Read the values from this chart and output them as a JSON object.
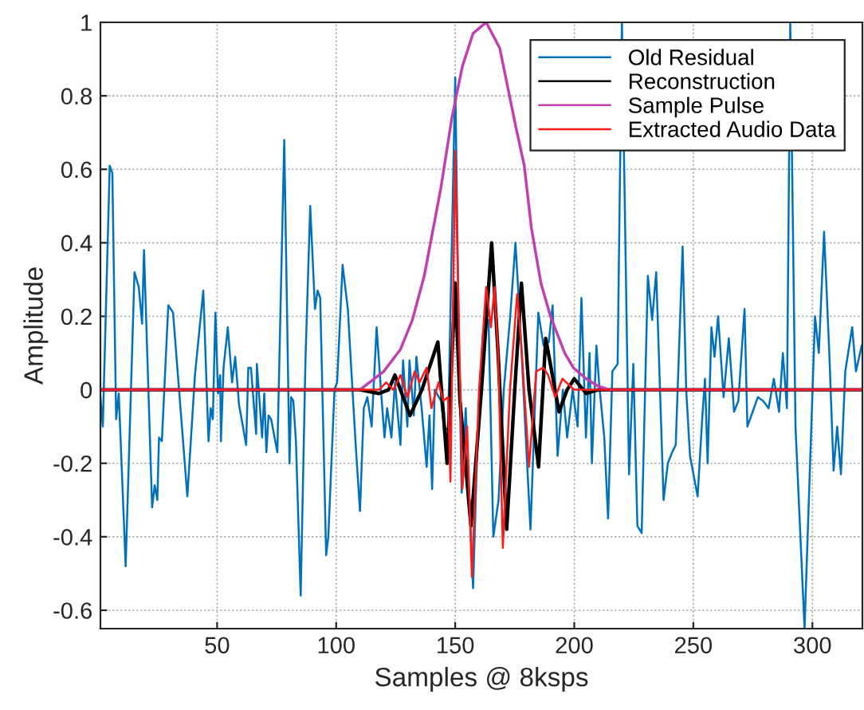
{
  "chart_data": {
    "type": "line",
    "xlabel": "Samples @ 8ksps",
    "ylabel": "Amplitude",
    "xlim": [
      1,
      321
    ],
    "ylim": [
      -0.65,
      1
    ],
    "xticks": [
      50,
      100,
      150,
      200,
      250,
      300
    ],
    "yticks": [
      -0.6,
      -0.4,
      -0.2,
      0,
      0.2,
      0.4,
      0.6,
      0.8,
      1
    ],
    "grid": true,
    "legend": "top right",
    "line_style": "solid",
    "marker": "none",
    "series": [
      {
        "name": "Old Residual",
        "color": "#0072bd",
        "x": [
          1,
          2,
          4.9,
          6,
          7.6,
          8.7,
          11.6,
          15.3,
          17.1,
          18.5,
          19.3,
          22.7,
          23.8,
          24.9,
          25.6,
          26.8,
          29.5,
          31.5,
          37.5,
          40.7,
          44.2,
          46.4,
          47.3,
          48.2,
          49.3,
          50.4,
          51.3,
          51.6,
          52.7,
          54.5,
          56.3,
          57.6,
          59.2,
          62.2,
          63.1,
          64.2,
          66.4,
          66.7,
          68.9,
          69.8,
          70.7,
          71.6,
          72.7,
          75.3,
          78.2,
          80.4,
          81.1,
          82,
          83.1,
          85.1,
          87.1,
          89.1,
          91.1,
          92.2,
          93.3,
          95.8,
          96.7,
          99.3,
          100.4,
          102.7,
          104.9,
          106.4,
          108.2,
          110,
          111.6,
          113.1,
          114.9,
          117,
          118.8,
          120.3,
          121.4,
          123.2,
          124.7,
          127,
          128.1,
          129.9,
          130.8,
          132.6,
          133.7,
          135.9,
          138,
          139.2,
          140.3,
          141.4,
          144,
          145.3,
          147,
          148.1,
          150,
          151.6,
          152.7,
          154.4,
          157.5,
          159.3,
          161.6,
          164,
          166,
          168.2,
          170.4,
          173.1,
          175.3,
          177.1,
          179.8,
          181.6,
          184.9,
          187.1,
          189.3,
          190.9,
          193,
          195.2,
          197,
          199.3,
          201.4,
          203,
          204.9,
          206.4,
          207.4,
          209.3,
          210.4,
          212.6,
          214.2,
          216,
          218.2,
          220,
          223,
          224.8,
          226.5,
          228.3,
          230.9,
          232.7,
          234.4,
          237.5,
          239.3,
          241.1,
          242.6,
          245.5,
          247,
          248.6,
          251.8,
          253.8,
          254.9,
          256,
          257.6,
          258.9,
          260.4,
          262.7,
          264.9,
          267.1,
          268.9,
          271.5,
          272.7,
          274.9,
          277.1,
          279.3,
          281.6,
          283.8,
          286,
          287.6,
          289.3,
          290.7,
          292.9,
          296.7,
          298.2,
          301.1,
          302.7,
          304.9,
          307.1,
          308.9,
          310.4,
          312,
          313.8,
          316.7,
          318.3,
          320.7
        ],
        "values": [
          -0.02,
          -0.1,
          0.61,
          0.59,
          -0.08,
          -0.01,
          -0.48,
          0.32,
          0.28,
          0.18,
          0.38,
          -0.32,
          -0.26,
          -0.3,
          -0.13,
          -0.14,
          0.23,
          0.21,
          -0.29,
          0.04,
          0.27,
          -0.14,
          -0.05,
          -0.08,
          0.21,
          -0.01,
          0.04,
          -0.14,
          0.06,
          0.17,
          0.02,
          0.09,
          -0.04,
          -0.15,
          0.06,
          0.06,
          -0.12,
          0.07,
          -0.13,
          -0.01,
          -0.17,
          -0.07,
          -0.08,
          -0.17,
          0.68,
          -0.2,
          -0.02,
          -0.03,
          -0.14,
          -0.56,
          0.08,
          0.5,
          0.22,
          0.27,
          0.25,
          -0.45,
          -0.4,
          0.0,
          0.02,
          0.34,
          0.22,
          0.05,
          -0.15,
          -0.33,
          -0.05,
          -0.02,
          -0.1,
          0.17,
          0.0,
          -0.13,
          -0.05,
          -0.13,
          0.02,
          -0.15,
          0.08,
          -0.1,
          0.08,
          -0.07,
          0.09,
          -0.05,
          -0.21,
          -0.07,
          -0.27,
          0.0,
          -0.03,
          -0.1,
          -0.11,
          0.25,
          0.85,
          0.1,
          -0.28,
          -0.05,
          -0.54,
          -0.15,
          0.15,
          0.19,
          -0.4,
          -0.3,
          0.0,
          0.2,
          0.4,
          0.2,
          -0.15,
          -0.38,
          0.21,
          0.12,
          0.13,
          0.23,
          -0.18,
          0.0,
          -0.13,
          0.0,
          -0.1,
          0.25,
          -0.13,
          0.1,
          -0.2,
          0.12,
          0.02,
          -0.13,
          -0.35,
          0.05,
          0.07,
          1.0,
          -0.23,
          0.07,
          -0.37,
          -0.39,
          0.31,
          0.19,
          0.32,
          -0.3,
          -0.2,
          -0.17,
          -0.15,
          0.39,
          0.0,
          -0.18,
          -0.29,
          -0.07,
          0.03,
          -0.2,
          0.17,
          0.09,
          0.2,
          -0.02,
          0.14,
          -0.06,
          -0.03,
          0.22,
          -0.1,
          -0.06,
          -0.02,
          -0.03,
          -0.05,
          0.03,
          -0.06,
          0.1,
          -0.05,
          1.0,
          -0.1,
          -0.65,
          -0.36,
          0.2,
          0.1,
          0.43,
          0.1,
          -0.22,
          -0.1,
          -0.23,
          0.05,
          0.17,
          0.05,
          0.12
        ]
      },
      {
        "name": "Reconstruction",
        "color": "#000000",
        "x": [
          1,
          110,
          118,
          122,
          124.7,
          131,
          136,
          142.7,
          146.6,
          150,
          152,
          156.6,
          161,
          165.3,
          168,
          171.6,
          175,
          177.8,
          181,
          185,
          188,
          193.6,
          197,
          200,
          205,
          210,
          321
        ],
        "values": [
          0,
          0,
          -0.01,
          0.0,
          0.04,
          -0.07,
          0.0,
          0.13,
          -0.2,
          0.29,
          -0.03,
          -0.37,
          0.0,
          0.4,
          0.1,
          -0.38,
          0.0,
          0.29,
          0.0,
          -0.21,
          0.14,
          -0.06,
          0.0,
          0.03,
          -0.01,
          0,
          0
        ]
      },
      {
        "name": "Sample Pulse",
        "color": "#c040b0",
        "x": [
          1,
          110,
          114,
          120,
          127,
          132,
          137,
          144,
          148.6,
          153,
          157.5,
          163,
          168.7,
          175.3,
          179,
          182,
          186,
          190,
          193,
          196,
          199.6,
          205,
          210,
          215,
          321
        ],
        "values": [
          0,
          0,
          0.02,
          0.05,
          0.11,
          0.19,
          0.31,
          0.55,
          0.74,
          0.88,
          0.97,
          1.0,
          0.93,
          0.72,
          0.61,
          0.44,
          0.29,
          0.2,
          0.15,
          0.1,
          0.06,
          0.03,
          0.01,
          0,
          0
        ]
      },
      {
        "name": "Extracted Audio Data",
        "color": "#ff1a1a",
        "x": [
          1,
          118,
          121,
          124,
          127,
          130,
          133,
          135,
          138,
          140,
          143,
          145,
          147,
          148,
          150,
          153,
          155,
          157,
          160,
          163,
          165,
          166.5,
          168,
          170,
          173,
          176,
          178,
          181,
          184,
          187,
          189,
          192,
          195,
          200,
          321
        ],
        "values": [
          0,
          0,
          0.02,
          0.0,
          0.04,
          -0.02,
          0.05,
          0.02,
          0.06,
          -0.05,
          0.02,
          -0.03,
          -0.02,
          -0.25,
          0.65,
          -0.27,
          -0.1,
          -0.51,
          0.0,
          0.28,
          0.17,
          0.28,
          0.1,
          -0.43,
          0.0,
          0.26,
          0.1,
          -0.21,
          0.05,
          0.06,
          0.04,
          -0.02,
          0.03,
          0.0,
          0
        ]
      }
    ]
  }
}
